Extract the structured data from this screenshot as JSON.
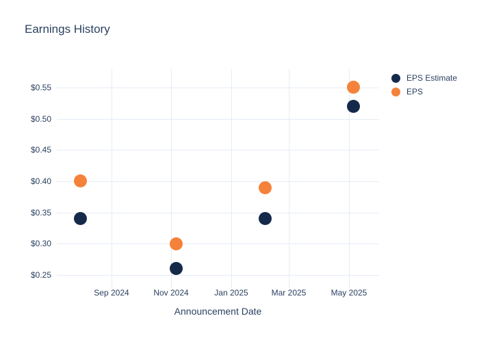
{
  "chart": {
    "title": "Earnings History",
    "x_axis_title": "Announcement Date"
  },
  "colors": {
    "background": "#ffffff",
    "grid": "#e5ecf6",
    "text": "#2a3f5f",
    "eps_estimate": "#15294b",
    "eps": "#f5823b"
  },
  "chart_data": {
    "type": "scatter",
    "title": "Earnings History",
    "xlabel": "Announcement Date",
    "ylabel": "",
    "x": [
      "2024-07-31",
      "2024-11-06",
      "2025-02-05",
      "2025-05-06"
    ],
    "series": [
      {
        "name": "EPS Estimate",
        "color": "#15294b",
        "values": [
          0.34,
          0.26,
          0.34,
          0.52
        ]
      },
      {
        "name": "EPS",
        "color": "#f5823b",
        "values": [
          0.4,
          0.3,
          0.39,
          0.55
        ]
      }
    ],
    "x_ticks": [
      {
        "date": "2024-09-01",
        "label": "Sep 2024"
      },
      {
        "date": "2024-11-01",
        "label": "Nov 2024"
      },
      {
        "date": "2025-01-01",
        "label": "Jan 2025"
      },
      {
        "date": "2025-03-01",
        "label": "Mar 2025"
      },
      {
        "date": "2025-05-01",
        "label": "May 2025"
      }
    ],
    "y_ticks": [
      {
        "value": 0.25,
        "label": "$0.25"
      },
      {
        "value": 0.3,
        "label": "$0.30"
      },
      {
        "value": 0.35,
        "label": "$0.35"
      },
      {
        "value": 0.4,
        "label": "$0.40"
      },
      {
        "value": 0.45,
        "label": "$0.45"
      },
      {
        "value": 0.5,
        "label": "$0.50"
      },
      {
        "value": 0.55,
        "label": "$0.55"
      }
    ],
    "x_range": [
      "2024-07-07",
      "2025-06-01"
    ],
    "y_range": [
      0.2335,
      0.5795
    ],
    "grid": true,
    "legend_position": "top-right-outside",
    "marker_size_px": 19
  }
}
